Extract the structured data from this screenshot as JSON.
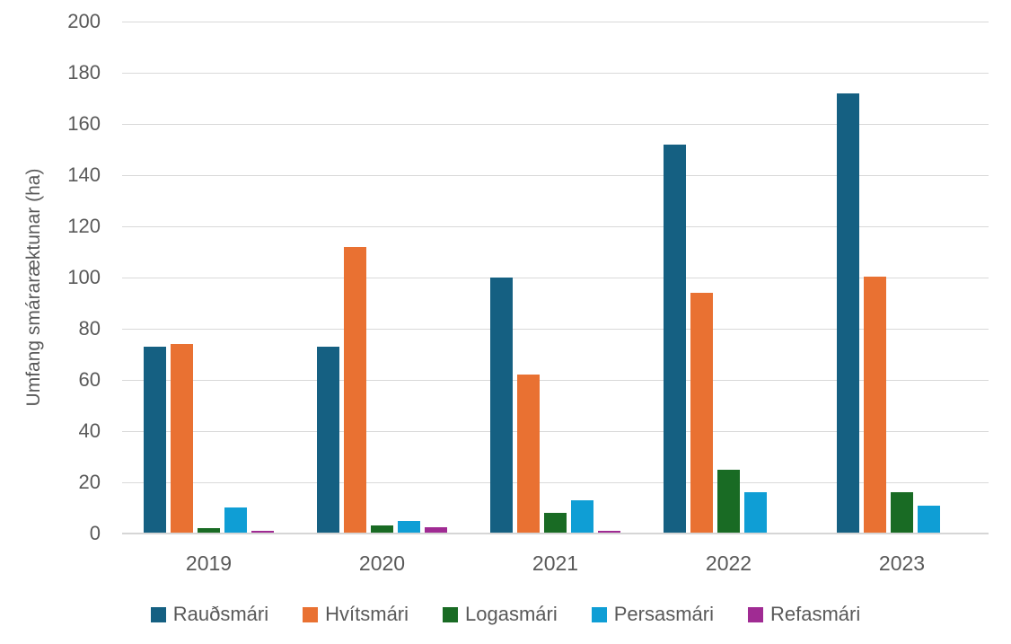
{
  "chart_data": {
    "type": "bar",
    "title": "",
    "xlabel": "",
    "ylabel": "Umfang smáraræktunar (ha)",
    "ylim": [
      0,
      200
    ],
    "ytick_step": 20,
    "yticks": [
      "0",
      "20",
      "40",
      "60",
      "80",
      "100",
      "120",
      "140",
      "160",
      "180",
      "200"
    ],
    "grid": "horizontal",
    "legend_position": "bottom",
    "categories": [
      "2019",
      "2020",
      "2021",
      "2022",
      "2023"
    ],
    "series": [
      {
        "name": "Rauðsmári",
        "color": "#156082",
        "values": [
          73,
          73,
          100,
          152,
          172
        ]
      },
      {
        "name": "Hvítsmári",
        "color": "#E97132",
        "values": [
          74,
          112,
          62,
          94,
          100.5
        ]
      },
      {
        "name": "Logasmári",
        "color": "#196B24",
        "values": [
          2,
          3,
          8,
          25,
          16
        ]
      },
      {
        "name": "Persasmári",
        "color": "#0F9ED5",
        "values": [
          10,
          5,
          13,
          16,
          11
        ]
      },
      {
        "name": "Refasmári",
        "color": "#A02B93",
        "values": [
          1,
          2.5,
          1,
          0,
          0
        ]
      }
    ]
  },
  "colors": {
    "background": "#FFFFFF",
    "gridline": "#D9D9D9",
    "axis_text": "#595959"
  }
}
